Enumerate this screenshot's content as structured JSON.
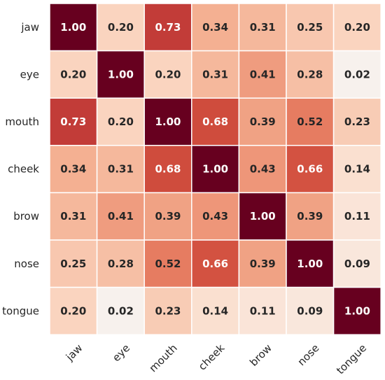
{
  "chart_data": {
    "type": "heatmap",
    "title": "",
    "xlabel": "",
    "ylabel": "",
    "x_categories": [
      "jaw",
      "eye",
      "mouth",
      "cheek",
      "brow",
      "nose",
      "tongue"
    ],
    "y_categories": [
      "jaw",
      "eye",
      "mouth",
      "cheek",
      "brow",
      "nose",
      "tongue"
    ],
    "values": [
      [
        1.0,
        0.2,
        0.73,
        0.34,
        0.31,
        0.25,
        0.2
      ],
      [
        0.2,
        1.0,
        0.2,
        0.31,
        0.41,
        0.28,
        0.02
      ],
      [
        0.73,
        0.2,
        1.0,
        0.68,
        0.39,
        0.52,
        0.23
      ],
      [
        0.34,
        0.31,
        0.68,
        1.0,
        0.43,
        0.66,
        0.14
      ],
      [
        0.31,
        0.41,
        0.39,
        0.43,
        1.0,
        0.39,
        0.11
      ],
      [
        0.25,
        0.28,
        0.52,
        0.66,
        0.39,
        1.0,
        0.09
      ],
      [
        0.2,
        0.02,
        0.23,
        0.14,
        0.11,
        0.09,
        1.0
      ]
    ],
    "value_format": "0.00",
    "annotations": true,
    "colorbar": false,
    "colormap": "Reds",
    "colormap_stops": [
      "#f7f4f2",
      "#fbdcca",
      "#f4b294",
      "#e98266",
      "#d2503f",
      "#a81c2c",
      "#67001f"
    ],
    "vmin": 0.0,
    "vmax": 1.0,
    "text_color_dark": "#262626",
    "text_color_light": "#ffffff",
    "grid_line_color": "#ffffff"
  }
}
